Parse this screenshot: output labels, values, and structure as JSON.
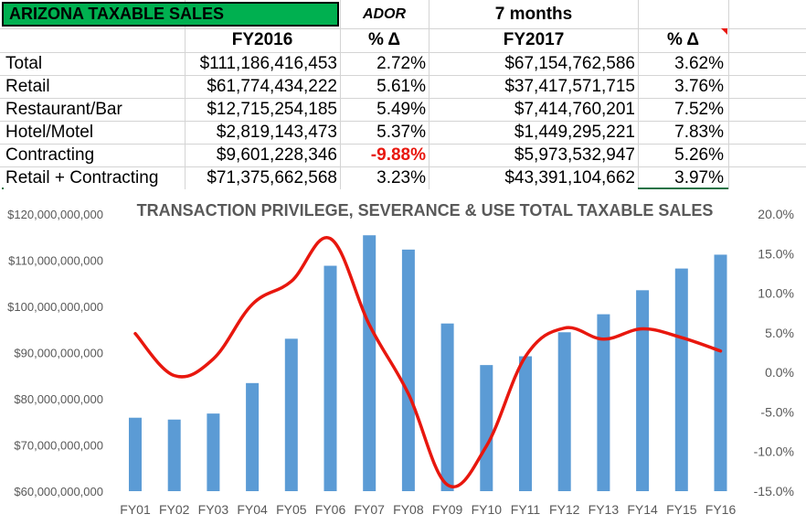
{
  "sheet": {
    "title": "ARIZONA TAXABLE SALES",
    "ador_label": "ADOR",
    "period_label": "7 months",
    "headers": {
      "fy2016": "FY2016",
      "pct1": "% Δ",
      "fy2017": "FY2017",
      "pct2": "% Δ"
    },
    "rows": [
      {
        "label": "Total",
        "fy2016": "$111,186,416,453",
        "pct1": "2.72%",
        "fy2017": "$67,154,762,586",
        "pct2": "3.62%"
      },
      {
        "label": "Retail",
        "fy2016": "$61,774,434,222",
        "pct1": "5.61%",
        "fy2017": "$37,417,571,715",
        "pct2": "3.76%"
      },
      {
        "label": "Restaurant/Bar",
        "fy2016": "$12,715,254,185",
        "pct1": "5.49%",
        "fy2017": "$7,414,760,201",
        "pct2": "7.52%"
      },
      {
        "label": "Hotel/Motel",
        "fy2016": "$2,819,143,473",
        "pct1": "5.37%",
        "fy2017": "$1,449,295,221",
        "pct2": "7.83%"
      },
      {
        "label": "Contracting",
        "fy2016": "$9,601,228,346",
        "pct1": "-9.88%",
        "fy2017": "$5,973,532,947",
        "pct2": "5.26%"
      },
      {
        "label": "Retail + Contracting",
        "fy2016": "$71,375,662,568",
        "pct1": "3.23%",
        "fy2017": "$43,391,104,662",
        "pct2": "3.97%"
      }
    ],
    "colors": {
      "title_fill": "#00b050",
      "negative": "#e8170e"
    }
  },
  "chart_data": {
    "type": "bar",
    "title": "TRANSACTION PRIVILEGE, SEVERANCE & USE TOTAL TAXABLE SALES",
    "categories": [
      "FY01",
      "FY02",
      "FY03",
      "FY04",
      "FY05",
      "FY06",
      "FY07",
      "FY08",
      "FY09",
      "FY10",
      "FY11",
      "FY12",
      "FY13",
      "FY14",
      "FY15",
      "FY16"
    ],
    "series": [
      {
        "type": "bar",
        "axis": "left",
        "color": "#5b9bd5",
        "values": [
          75900000000,
          75500000000,
          76800000000,
          83400000000,
          93000000000,
          108800000000,
          115400000000,
          112300000000,
          96300000000,
          87300000000,
          89200000000,
          94400000000,
          98300000000,
          103500000000,
          108200000000,
          111200000000
        ]
      },
      {
        "type": "line",
        "axis": "right",
        "color": "#e8170e",
        "values": [
          4.9,
          -0.4,
          1.7,
          8.6,
          11.5,
          16.9,
          6.0,
          -2.7,
          -14.2,
          -9.3,
          2.0,
          5.6,
          4.2,
          5.5,
          4.4,
          2.7
        ]
      }
    ],
    "y_left": {
      "min": 60000000000,
      "max": 120000000000,
      "step": 10000000000,
      "tick_labels": [
        "$60,000,000,000",
        "$70,000,000,000",
        "$80,000,000,000",
        "$90,000,000,000",
        "$100,000,000,000",
        "$110,000,000,000",
        "$120,000,000,000"
      ]
    },
    "y_right": {
      "min": -15,
      "max": 20,
      "step": 5,
      "tick_labels": [
        "-15.0%",
        "-10.0%",
        "-5.0%",
        "0.0%",
        "5.0%",
        "10.0%",
        "15.0%",
        "20.0%"
      ]
    },
    "grid": false,
    "legend": "none"
  }
}
